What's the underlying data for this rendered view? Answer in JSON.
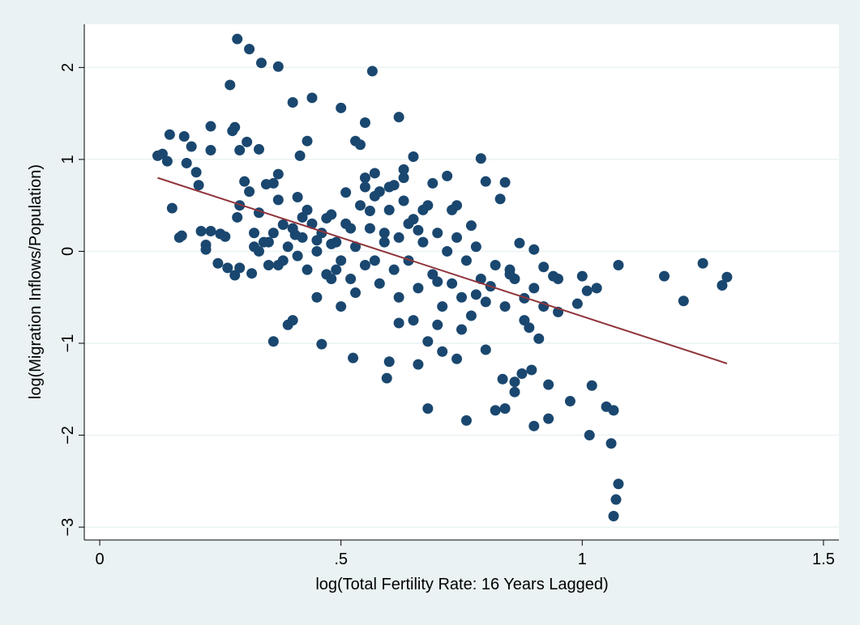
{
  "chart_data": {
    "type": "scatter",
    "x_label": "log(Total Fertility Rate: 16 Years Lagged)",
    "y_label": "log(Migration Inflows/Population)",
    "xlim": [
      -0.032,
      1.532
    ],
    "ylim": [
      -3.14,
      2.47
    ],
    "xticks": [
      0,
      {
        "value": 0.5,
        "label": ".5"
      },
      1,
      1.5
    ],
    "yticks": [
      {
        "value": -3,
        "label": "−3"
      },
      {
        "value": -2,
        "label": "−2"
      },
      {
        "value": -1,
        "label": "−1"
      },
      0,
      1,
      2
    ],
    "grid": true,
    "color": "#1a476f",
    "x": [
      0.12,
      0.13,
      0.14,
      0.145,
      0.15,
      0.165,
      0.17,
      0.175,
      0.18,
      0.19,
      0.2,
      0.205,
      0.21,
      0.22,
      0.22,
      0.23,
      0.23,
      0.23,
      0.245,
      0.25,
      0.26,
      0.265,
      0.27,
      0.275,
      0.28,
      0.28,
      0.285,
      0.285,
      0.29,
      0.29,
      0.29,
      0.3,
      0.305,
      0.31,
      0.31,
      0.315,
      0.32,
      0.32,
      0.33,
      0.33,
      0.335,
      0.34,
      0.345,
      0.35,
      0.36,
      0.36,
      0.37,
      0.37,
      0.37,
      0.38,
      0.39,
      0.4,
      0.4,
      0.405,
      0.41,
      0.415,
      0.42,
      0.43,
      0.44,
      0.45,
      0.46,
      0.47,
      0.48,
      0.49,
      0.5,
      0.51,
      0.52,
      0.525,
      0.53,
      0.54,
      0.55,
      0.55,
      0.56,
      0.565,
      0.57,
      0.58,
      0.59,
      0.595,
      0.6,
      0.61,
      0.62,
      0.62,
      0.63,
      0.64,
      0.65,
      0.66,
      0.66,
      0.68,
      0.68,
      0.69,
      0.7,
      0.71,
      0.72,
      0.73,
      0.74,
      0.76,
      0.77,
      0.78,
      0.79,
      0.8,
      0.8,
      0.81,
      0.82,
      0.83,
      0.835,
      0.84,
      0.84,
      0.85,
      0.86,
      0.86,
      0.87,
      0.875,
      0.88,
      0.89,
      0.895,
      0.9,
      0.9,
      0.91,
      0.92,
      0.93,
      0.93,
      0.94,
      0.95,
      0.975,
      0.99,
      1.0,
      1.01,
      1.015,
      1.02,
      1.03,
      1.05,
      1.06,
      1.065,
      1.065,
      1.07,
      1.075,
      1.075,
      1.17,
      1.21,
      1.25,
      1.29,
      1.3,
      0.33,
      0.35,
      0.36,
      0.38,
      0.39,
      0.4,
      0.41,
      0.42,
      0.43,
      0.44,
      0.45,
      0.46,
      0.47,
      0.48,
      0.49,
      0.5,
      0.51,
      0.52,
      0.53,
      0.54,
      0.55,
      0.56,
      0.57,
      0.58,
      0.59,
      0.6,
      0.61,
      0.62,
      0.63,
      0.64,
      0.65,
      0.66,
      0.67,
      0.68,
      0.69,
      0.7,
      0.71,
      0.72,
      0.73,
      0.74,
      0.75,
      0.76,
      0.77,
      0.78,
      0.79,
      0.8,
      0.82,
      0.84,
      0.86,
      0.88,
      0.9,
      0.92,
      0.55,
      0.57,
      0.6,
      0.45,
      0.5,
      0.53,
      0.62,
      0.65,
      0.7,
      0.75,
      0.37,
      0.43,
      0.48,
      0.63,
      0.67,
      0.74,
      0.85,
      0.95
    ],
    "values": [
      1.04,
      1.06,
      0.98,
      1.27,
      0.47,
      0.15,
      0.17,
      1.25,
      0.96,
      1.14,
      0.86,
      0.72,
      0.22,
      0.07,
      0.02,
      1.36,
      1.1,
      0.22,
      -0.13,
      0.19,
      0.16,
      -0.18,
      1.81,
      1.31,
      1.35,
      -0.26,
      2.31,
      0.37,
      1.1,
      0.5,
      -0.18,
      0.76,
      1.19,
      2.2,
      0.65,
      -0.24,
      0.2,
      0.05,
      1.11,
      0.42,
      2.05,
      0.1,
      0.73,
      -0.15,
      0.74,
      -0.98,
      2.01,
      0.84,
      0.56,
      0.29,
      -0.8,
      -0.75,
      1.62,
      0.18,
      0.59,
      1.04,
      0.37,
      1.2,
      1.67,
      0.12,
      -1.01,
      0.36,
      0.08,
      -0.2,
      1.56,
      0.64,
      0.25,
      -1.16,
      1.2,
      1.16,
      1.4,
      0.8,
      0.44,
      1.96,
      -0.1,
      0.65,
      0.2,
      -1.38,
      -1.2,
      0.72,
      1.46,
      -0.78,
      0.89,
      0.3,
      1.03,
      0.23,
      -1.23,
      -0.98,
      -1.71,
      0.74,
      -0.33,
      -1.09,
      0.82,
      0.45,
      -1.17,
      -1.84,
      0.28,
      -0.47,
      1.01,
      0.76,
      -1.07,
      -0.38,
      -1.73,
      0.57,
      -1.39,
      0.75,
      -1.71,
      -0.2,
      -1.42,
      -1.53,
      0.09,
      -1.33,
      -0.51,
      -0.83,
      -1.29,
      -1.9,
      0.02,
      -0.95,
      -0.17,
      -1.45,
      -1.82,
      -0.27,
      -0.66,
      -1.63,
      -0.57,
      -0.27,
      -0.43,
      -2.0,
      -1.46,
      -0.4,
      -1.69,
      -2.09,
      -2.88,
      -1.73,
      -2.7,
      -2.53,
      -0.15,
      -0.27,
      -0.54,
      -0.13,
      -0.37,
      -0.28,
      0.0,
      0.1,
      0.2,
      -0.1,
      0.05,
      0.25,
      -0.05,
      0.15,
      -0.2,
      0.3,
      0.0,
      0.2,
      -0.25,
      0.4,
      0.1,
      -0.1,
      0.3,
      -0.3,
      0.05,
      0.5,
      -0.15,
      0.25,
      0.6,
      -0.35,
      0.1,
      0.45,
      -0.2,
      0.15,
      0.55,
      -0.1,
      0.35,
      -0.4,
      0.1,
      0.5,
      -0.25,
      0.2,
      -0.6,
      0.0,
      -0.35,
      0.15,
      -0.5,
      -0.1,
      -0.7,
      0.05,
      -0.3,
      -0.55,
      -0.15,
      -0.6,
      -0.3,
      -0.75,
      -0.4,
      -0.6,
      0.7,
      0.85,
      0.7,
      -0.5,
      -0.6,
      -0.45,
      -0.5,
      -0.75,
      -0.8,
      -0.85,
      -0.15,
      0.45,
      -0.3,
      0.8,
      0.45,
      0.5,
      -0.25,
      -0.3
    ],
    "fit_line": {
      "x": [
        0.12,
        1.3
      ],
      "values": [
        0.8,
        -1.22
      ],
      "color": "#90353b"
    }
  }
}
